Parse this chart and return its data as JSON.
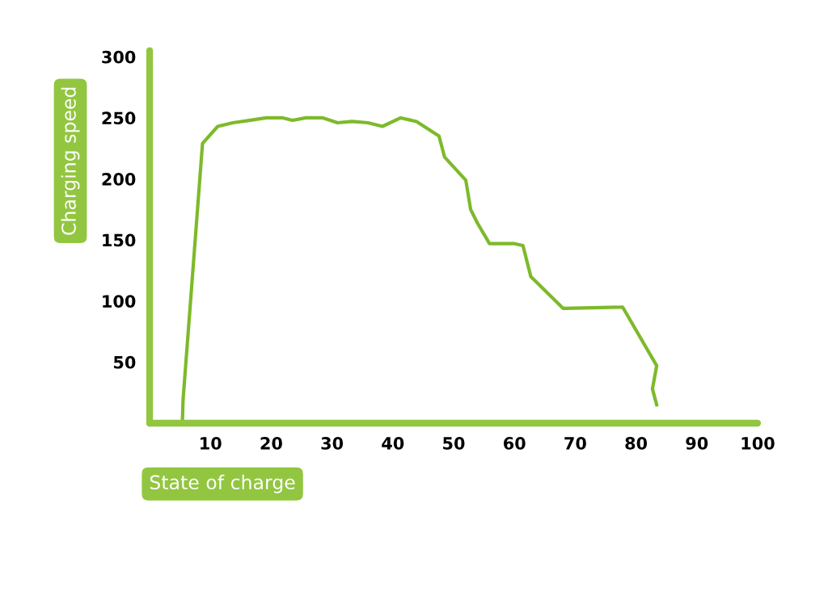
{
  "chart_data": {
    "type": "line",
    "xlabel": "State of charge",
    "ylabel": "Charging speed",
    "x": [
      5.4,
      5.5,
      8.7,
      11.2,
      13.7,
      16.6,
      19.2,
      21.9,
      23.5,
      25.7,
      28.5,
      30.9,
      33.3,
      35.9,
      38.3,
      41.3,
      43.9,
      47.6,
      48.5,
      52.0,
      52.8,
      53.9,
      55.9,
      60.0,
      61.4,
      62.7,
      68.0,
      77.8,
      83.4,
      82.7,
      83.4
    ],
    "series": [
      {
        "color": "#7dba2a",
        "values": [
          3,
          19,
          229,
          243,
          246,
          248,
          250,
          250,
          248,
          250,
          250,
          246,
          247,
          246,
          243,
          250,
          247,
          235,
          218,
          199,
          175,
          164,
          147,
          147,
          145.5,
          120,
          94,
          95,
          47,
          28,
          15
        ]
      }
    ],
    "xlim": [
      0,
      100
    ],
    "ylim": [
      0,
      305
    ],
    "xticks": [
      10,
      20,
      30,
      40,
      50,
      60,
      70,
      80,
      90,
      100
    ],
    "yticks": [
      50,
      100,
      150,
      200,
      250,
      300
    ],
    "grid": false,
    "legend": false,
    "marker": "none",
    "line_style": "solid"
  }
}
